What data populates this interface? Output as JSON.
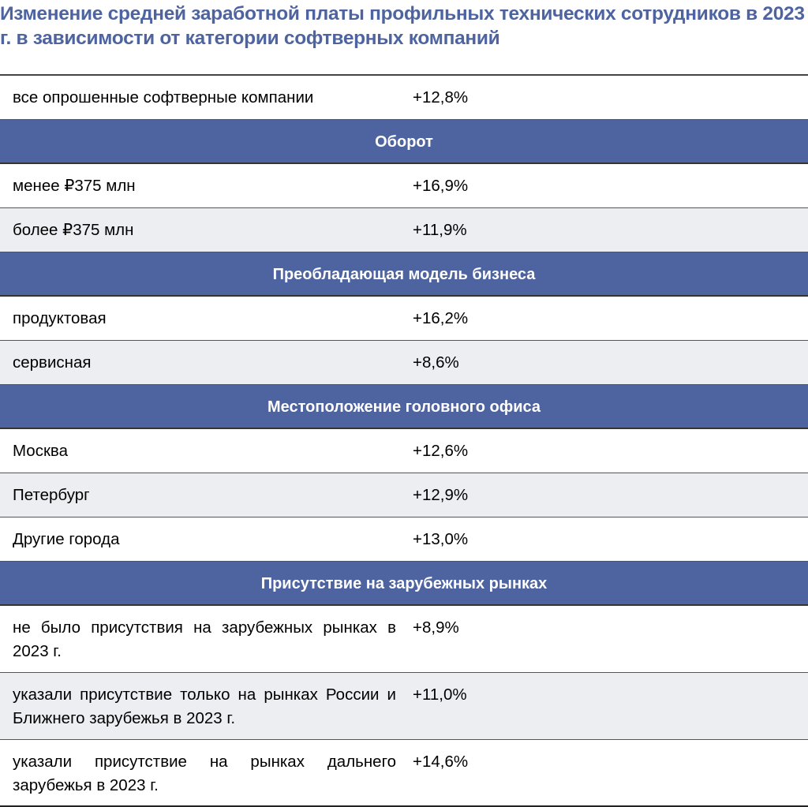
{
  "title": "Изменение средней заработной платы профильных технических сотрудников в 2023 г. в зависимости от категории софтверных компаний",
  "colors": {
    "header": "#4e64a0",
    "title": "#4e64a0",
    "stripe": "#eceef2"
  },
  "rows": [
    {
      "type": "row",
      "label": "все опрошенные софтверные компании",
      "value": "+12,8%"
    },
    {
      "type": "section",
      "label": "Оборот"
    },
    {
      "type": "row",
      "label": "менее ₽375 млн",
      "value": "+16,9%"
    },
    {
      "type": "row",
      "label": "более ₽375 млн",
      "value": "+11,9%"
    },
    {
      "type": "section",
      "label": "Преобладающая модель бизнеса"
    },
    {
      "type": "row",
      "label": "продуктовая",
      "value": "+16,2%"
    },
    {
      "type": "row",
      "label": "сервисная",
      "value": "+8,6%"
    },
    {
      "type": "section",
      "label": "Местоположение головного офиса"
    },
    {
      "type": "row",
      "label": "Москва",
      "value": "+12,6%"
    },
    {
      "type": "row",
      "label": "Петербург",
      "value": "+12,9%"
    },
    {
      "type": "row",
      "label": "Другие города",
      "value": "+13,0%"
    },
    {
      "type": "section",
      "label": "Присутствие на зарубежных рынках"
    },
    {
      "type": "row",
      "label": "не было присутствия на зарубежных рынках в 2023 г.",
      "value": "+8,9%"
    },
    {
      "type": "row",
      "label": "указали присутствие только на рынках России и Ближнего зарубежья в 2023 г.",
      "value": "+11,0%"
    },
    {
      "type": "row",
      "label": "указали присутствие на рынках дальнего зарубежья в 2023 г.",
      "value": "+14,6%"
    }
  ]
}
